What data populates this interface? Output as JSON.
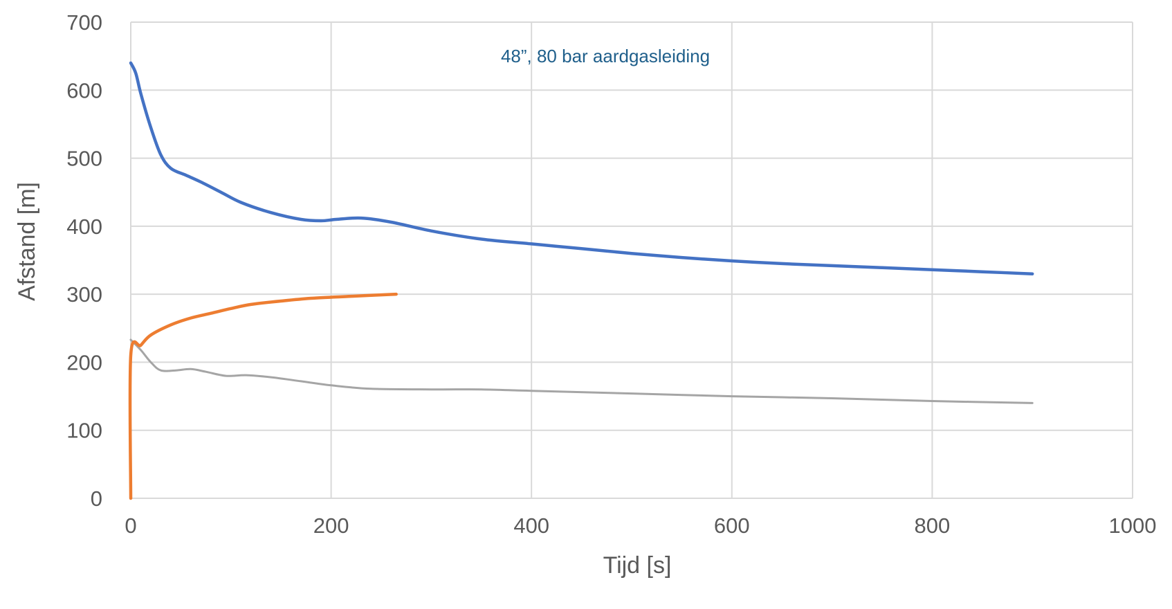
{
  "chart_data": {
    "type": "line",
    "title": "",
    "annotation": "48”, 80 bar aardgasleiding",
    "xlabel": "Tijd [s]",
    "ylabel": "Afstand [m]",
    "xlim": [
      0,
      1000
    ],
    "ylim": [
      0,
      700
    ],
    "xticks": [
      0,
      200,
      400,
      600,
      800,
      1000
    ],
    "yticks": [
      0,
      100,
      200,
      300,
      400,
      500,
      600,
      700
    ],
    "grid": true,
    "legend": "none",
    "colors": {
      "annotation": "#1f5f8b",
      "tick_text": "#595959",
      "grid": "#d9d9d9"
    },
    "series": [
      {
        "color": "#4472c4",
        "points": [
          [
            0,
            640
          ],
          [
            5,
            625
          ],
          [
            10,
            595
          ],
          [
            20,
            545
          ],
          [
            30,
            505
          ],
          [
            40,
            485
          ],
          [
            55,
            475
          ],
          [
            70,
            465
          ],
          [
            90,
            450
          ],
          [
            110,
            435
          ],
          [
            140,
            420
          ],
          [
            170,
            410
          ],
          [
            190,
            408
          ],
          [
            205,
            410
          ],
          [
            230,
            412
          ],
          [
            260,
            406
          ],
          [
            300,
            393
          ],
          [
            350,
            381
          ],
          [
            400,
            374
          ],
          [
            450,
            367
          ],
          [
            500,
            360
          ],
          [
            550,
            354
          ],
          [
            600,
            349
          ],
          [
            650,
            345
          ],
          [
            700,
            342
          ],
          [
            750,
            339
          ],
          [
            800,
            336
          ],
          [
            850,
            333
          ],
          [
            900,
            330
          ]
        ]
      },
      {
        "color": "#ed7d31",
        "points": [
          [
            0,
            0
          ],
          [
            0,
            210
          ],
          [
            10,
            225
          ],
          [
            20,
            240
          ],
          [
            40,
            255
          ],
          [
            60,
            265
          ],
          [
            80,
            272
          ],
          [
            100,
            279
          ],
          [
            120,
            285
          ],
          [
            150,
            290
          ],
          [
            180,
            294
          ],
          [
            220,
            297
          ],
          [
            265,
            300
          ]
        ]
      },
      {
        "color": "#a5a5a5",
        "points": [
          [
            0,
            233
          ],
          [
            10,
            218
          ],
          [
            20,
            200
          ],
          [
            30,
            188
          ],
          [
            45,
            188
          ],
          [
            60,
            190
          ],
          [
            75,
            186
          ],
          [
            95,
            180
          ],
          [
            115,
            181
          ],
          [
            140,
            178
          ],
          [
            170,
            172
          ],
          [
            200,
            166
          ],
          [
            240,
            161
          ],
          [
            300,
            160
          ],
          [
            350,
            160
          ],
          [
            400,
            158
          ],
          [
            500,
            154
          ],
          [
            600,
            150
          ],
          [
            700,
            147
          ],
          [
            800,
            143
          ],
          [
            900,
            140
          ]
        ]
      }
    ]
  }
}
